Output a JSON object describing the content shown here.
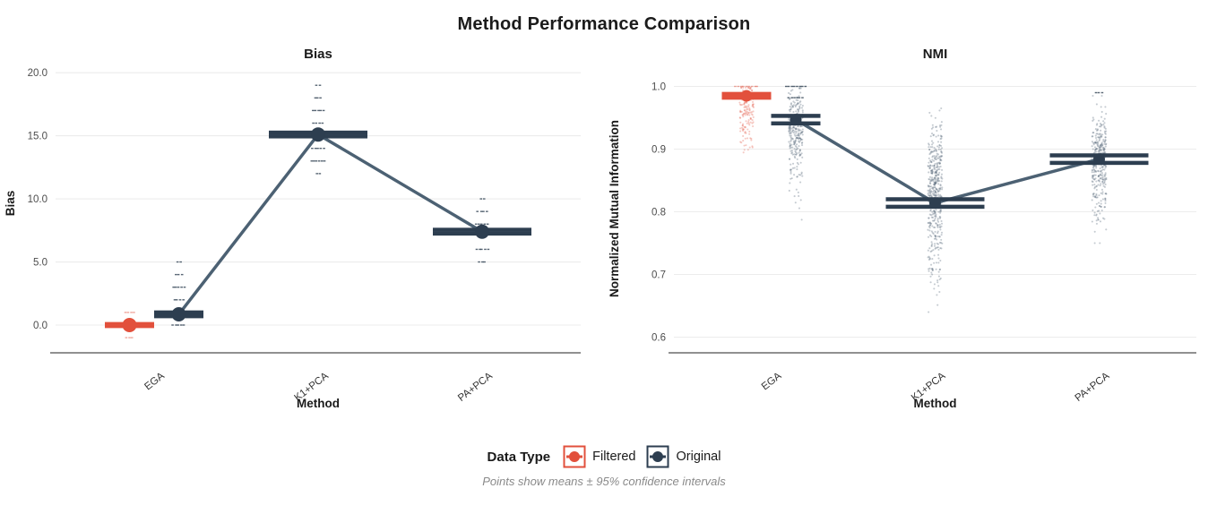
{
  "figure": {
    "title": "Method Performance Comparison"
  },
  "legend": {
    "title": "Data Type",
    "items": [
      {
        "label": "Filtered",
        "color": "#E2503C"
      },
      {
        "label": "Original",
        "color": "#2D3E50"
      }
    ],
    "caption": "Points show means ± 95% confidence intervals"
  },
  "colors": {
    "filtered": "#E2503C",
    "original": "#2D3E50",
    "filtered_jitter": "#E2503C",
    "original_jitter": "#4A5D6F",
    "trend_line": "#4C6173",
    "grid": "#ECECEC",
    "axis_line": "#4D4D4D",
    "tick_label": "#4D4D4D",
    "text": "#1A1A1A"
  },
  "chart_data": [
    {
      "type": "scatter",
      "title": "Bias",
      "xlabel": "Method",
      "ylabel": "Bias",
      "categories": [
        "EGA",
        "K1+PCA",
        "PA+PCA"
      ],
      "ylim": [
        -2.2,
        21.5
      ],
      "yticks": [
        0,
        5,
        10,
        15,
        20
      ],
      "ytick_labels": [
        "0.0",
        "5.0",
        "10.0",
        "15.0",
        "20.0"
      ],
      "grid": true,
      "legend_position": "bottom",
      "trend_series": "Original",
      "series": [
        {
          "name": "Filtered",
          "points": [
            {
              "cat": "EGA",
              "mean": 0.0,
              "lower": -0.08,
              "upper": 0.08
            }
          ],
          "jitter_rows": [
            {
              "cat": "EGA",
              "value": 1.0,
              "n": 4
            },
            {
              "cat": "EGA",
              "value": -1.0,
              "n": 3
            }
          ],
          "jitter_clusters": []
        },
        {
          "name": "Original",
          "points": [
            {
              "cat": "EGA",
              "mean": 0.85,
              "lower": 0.7,
              "upper": 1.0
            },
            {
              "cat": "K1+PCA",
              "mean": 15.1,
              "lower": 14.95,
              "upper": 15.25
            },
            {
              "cat": "PA+PCA",
              "mean": 7.4,
              "lower": 7.25,
              "upper": 7.55
            }
          ],
          "jitter_rows": [
            {
              "cat": "EGA",
              "value": 5,
              "n": 2
            },
            {
              "cat": "EGA",
              "value": 4,
              "n": 3
            },
            {
              "cat": "EGA",
              "value": 3,
              "n": 5
            },
            {
              "cat": "EGA",
              "value": 2,
              "n": 4
            },
            {
              "cat": "EGA",
              "value": 0,
              "n": 5
            },
            {
              "cat": "K1+PCA",
              "value": 19,
              "n": 2
            },
            {
              "cat": "K1+PCA",
              "value": 18,
              "n": 3
            },
            {
              "cat": "K1+PCA",
              "value": 17,
              "n": 5
            },
            {
              "cat": "K1+PCA",
              "value": 16,
              "n": 4
            },
            {
              "cat": "K1+PCA",
              "value": 14,
              "n": 5
            },
            {
              "cat": "K1+PCA",
              "value": 13,
              "n": 6
            },
            {
              "cat": "K1+PCA",
              "value": 12,
              "n": 2
            },
            {
              "cat": "PA+PCA",
              "value": 10,
              "n": 2
            },
            {
              "cat": "PA+PCA",
              "value": 9,
              "n": 4
            },
            {
              "cat": "PA+PCA",
              "value": 8,
              "n": 5
            },
            {
              "cat": "PA+PCA",
              "value": 6,
              "n": 5
            },
            {
              "cat": "PA+PCA",
              "value": 5,
              "n": 3
            }
          ],
          "jitter_clusters": []
        }
      ]
    },
    {
      "type": "scatter",
      "title": "NMI",
      "xlabel": "Method",
      "ylabel": "Normalized Mutual Information",
      "categories": [
        "EGA",
        "K1+PCA",
        "PA+PCA"
      ],
      "ylim": [
        0.575,
        1.035
      ],
      "yticks": [
        0.6,
        0.7,
        0.8,
        0.9,
        1.0
      ],
      "ytick_labels": [
        "0.6",
        "0.7",
        "0.8",
        "0.9",
        "1.0"
      ],
      "grid": true,
      "legend_position": "bottom",
      "trend_series": "Original",
      "series": [
        {
          "name": "Filtered",
          "points": [
            {
              "cat": "EGA",
              "mean": 0.985,
              "lower": 0.982,
              "upper": 0.988
            }
          ],
          "jitter_rows": [
            {
              "cat": "EGA",
              "value": 1.0,
              "n": 9
            }
          ],
          "jitter_clusters": [
            {
              "cat": "EGA",
              "center": 0.963,
              "sd": 0.022,
              "min": 0.875,
              "max": 0.998,
              "n": 120
            },
            {
              "cat": "EGA",
              "center": 0.92,
              "sd": 0.02,
              "min": 0.87,
              "max": 0.96,
              "n": 25
            }
          ]
        },
        {
          "name": "Original",
          "points": [
            {
              "cat": "EGA",
              "mean": 0.947,
              "lower": 0.941,
              "upper": 0.953
            },
            {
              "cat": "K1+PCA",
              "mean": 0.814,
              "lower": 0.808,
              "upper": 0.82
            },
            {
              "cat": "PA+PCA",
              "mean": 0.884,
              "lower": 0.878,
              "upper": 0.89
            }
          ],
          "jitter_rows": [
            {
              "cat": "EGA",
              "value": 1.0,
              "n": 8
            },
            {
              "cat": "EGA",
              "value": 0.982,
              "n": 6
            },
            {
              "cat": "PA+PCA",
              "value": 0.99,
              "n": 3
            }
          ],
          "jitter_clusters": [
            {
              "cat": "EGA",
              "center": 0.935,
              "sd": 0.03,
              "min": 0.79,
              "max": 0.997,
              "n": 230
            },
            {
              "cat": "EGA",
              "center": 0.86,
              "sd": 0.035,
              "min": 0.76,
              "max": 0.95,
              "n": 40
            },
            {
              "cat": "K1+PCA",
              "center": 0.845,
              "sd": 0.045,
              "min": 0.66,
              "max": 0.965,
              "n": 380
            },
            {
              "cat": "K1+PCA",
              "center": 0.74,
              "sd": 0.04,
              "min": 0.64,
              "max": 0.82,
              "n": 90
            },
            {
              "cat": "PA+PCA",
              "center": 0.885,
              "sd": 0.035,
              "min": 0.76,
              "max": 0.985,
              "n": 300
            },
            {
              "cat": "PA+PCA",
              "center": 0.81,
              "sd": 0.03,
              "min": 0.75,
              "max": 0.88,
              "n": 45
            }
          ]
        }
      ]
    }
  ]
}
